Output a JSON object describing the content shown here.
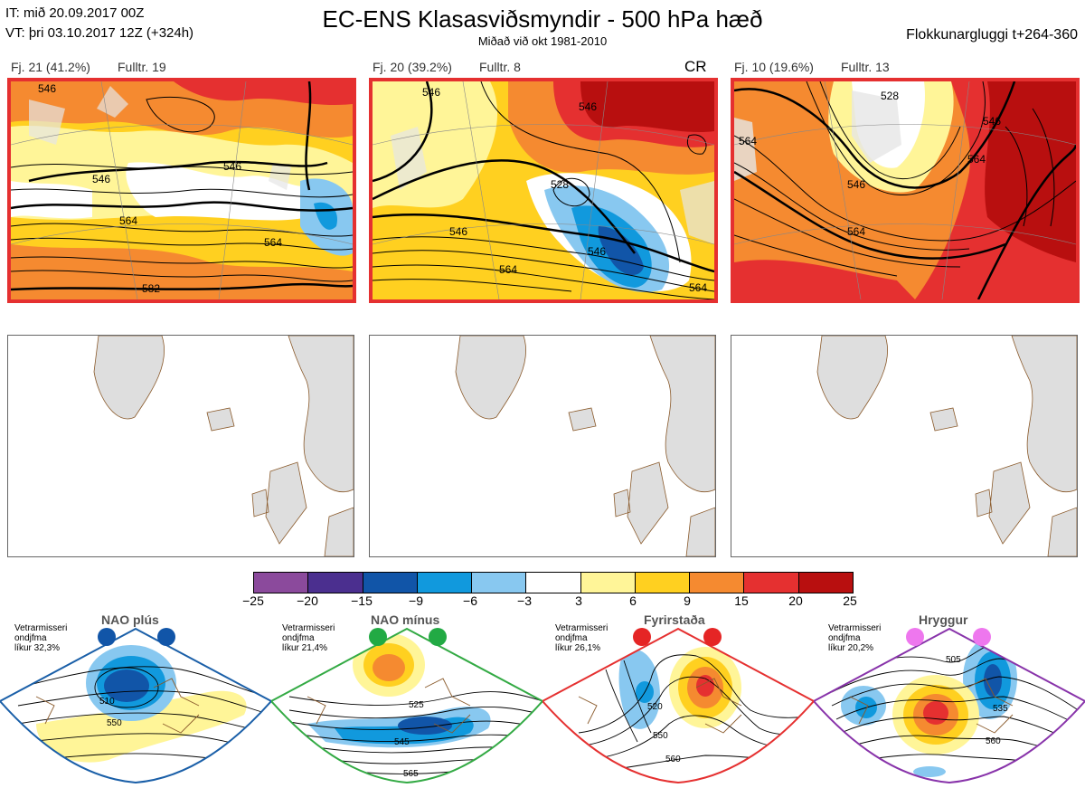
{
  "header": {
    "it_line": "IT: mið 20.09.2017 00Z",
    "vt_line": "VT: þri 03.10.2017 12Z  (+324h)",
    "title": "EC-ENS Klasasviðsmyndir - 500 hPa hæð",
    "subtitle": "Miðað við okt 1981-2010",
    "window": "Flokkunargluggi t+264-360"
  },
  "clusters": [
    {
      "label": "Fj. 21 (41.2%)",
      "rep": "Fulltr. 19",
      "tag": "",
      "contours": [
        "546",
        "546",
        "546",
        "564",
        "564",
        "582"
      ]
    },
    {
      "label": "Fj. 20 (39.2%)",
      "rep": "Fulltr. 8",
      "tag": "CR",
      "contours": [
        "546",
        "528",
        "546",
        "546",
        "564",
        "564",
        "546"
      ]
    },
    {
      "label": "Fj. 10 (19.6%)",
      "rep": "Fulltr. 13",
      "tag": "",
      "contours": [
        "528",
        "546",
        "546",
        "564",
        "564",
        "564"
      ]
    }
  ],
  "colorbar": {
    "colors": [
      "#8b4a9c",
      "#4b2f8f",
      "#1155a8",
      "#1199dd",
      "#88c8f0",
      "#ffffff",
      "#fff598",
      "#ffd020",
      "#f58a30",
      "#e53030",
      "#b80f0f"
    ],
    "ticks": [
      "−25",
      "−20",
      "−15",
      "−9",
      "−6",
      "−3",
      "3",
      "6",
      "9",
      "15",
      "20",
      "25"
    ]
  },
  "regimes": [
    {
      "name": "NAO plús",
      "season": "Vetrarmisseri",
      "type": "ondjfma",
      "likelihood": "líkur 32,3%",
      "dot_color": "#1155a8",
      "frame_color": "#1a5fa8",
      "contours": [
        "510",
        "550"
      ]
    },
    {
      "name": "NAO mínus",
      "season": "Vetrarmisseri",
      "type": "ondjfma",
      "likelihood": "líkur 21,4%",
      "dot_color": "#22aa44",
      "frame_color": "#33aa44",
      "contours": [
        "525",
        "545",
        "565"
      ]
    },
    {
      "name": "Fyrirstaða",
      "season": "Vetrarmisseri",
      "type": "ondjfma",
      "likelihood": "líkur 26,1%",
      "dot_color": "#e52525",
      "frame_color": "#e53030",
      "contours": [
        "520",
        "550",
        "560"
      ]
    },
    {
      "name": "Hryggur",
      "season": "Vetrarmisseri",
      "type": "ondjfma",
      "likelihood": "líkur 20,2%",
      "dot_color": "#ee77ee",
      "frame_color": "#8833aa",
      "contours": [
        "505",
        "535",
        "560"
      ]
    }
  ]
}
